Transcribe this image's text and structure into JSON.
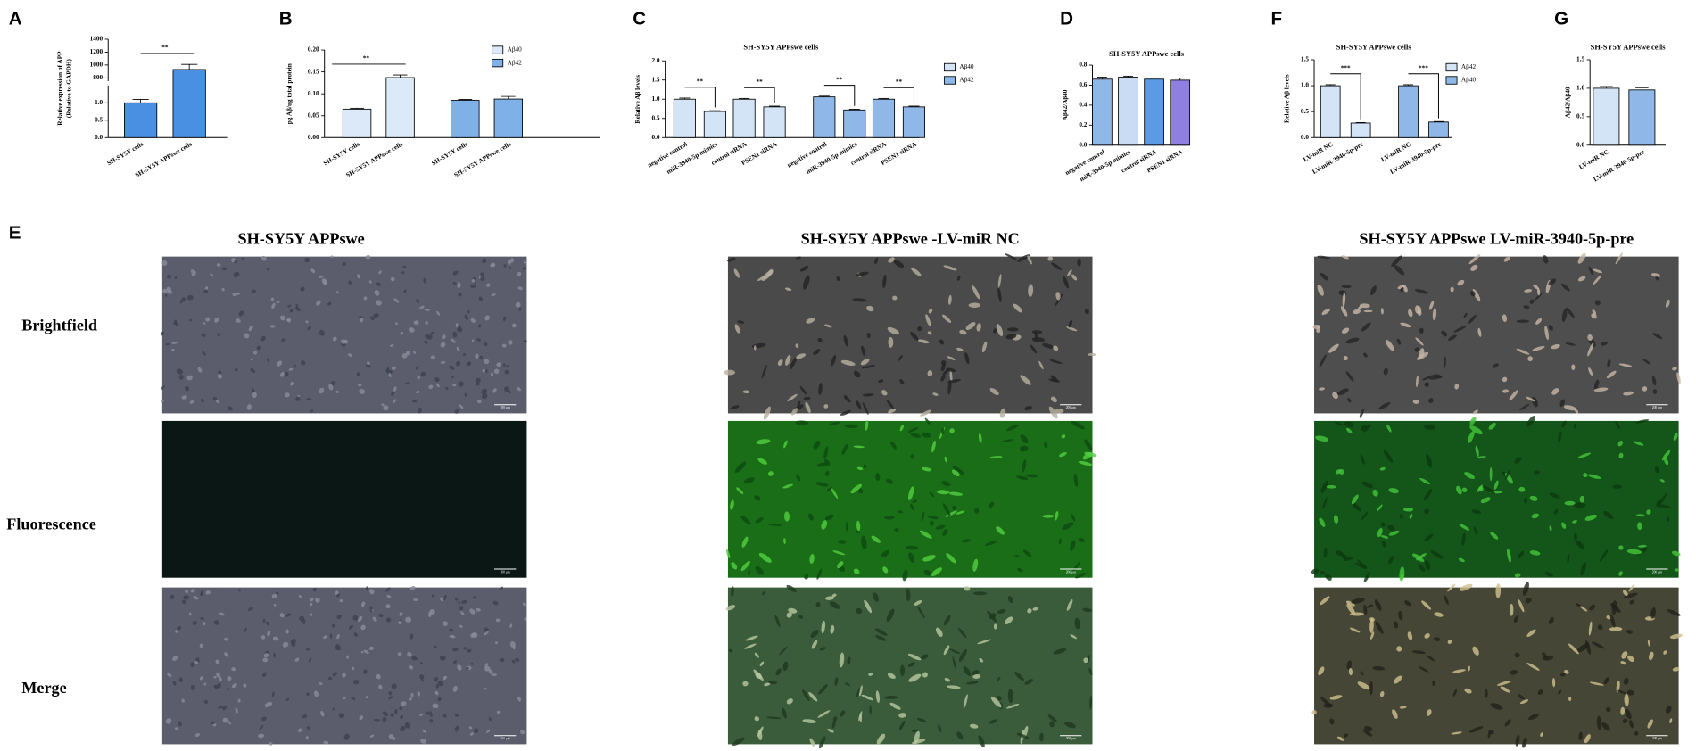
{
  "chart_data": [
    {
      "panel": "A",
      "type": "bar",
      "ylabel": [
        "Relative expression of APP",
        "(Relative to GAPDH)"
      ],
      "categories": [
        "SH-SY5Y cells",
        "SH-SY5Y APPswe cells"
      ],
      "values": [
        1.0,
        930
      ],
      "errors": [
        0.1,
        80
      ],
      "color": "#4a90e2",
      "ylim": [
        0,
        1400
      ],
      "ybreak": [
        1.5,
        750
      ],
      "yticks": [
        {
          "value": 0,
          "label": "0.0"
        },
        {
          "value": 0.5,
          "label": "0.5"
        },
        {
          "value": 1,
          "label": "1.0"
        },
        800,
        1000,
        1200,
        1400
      ],
      "significance": [
        {
          "label": "**",
          "between": [
            0,
            1
          ]
        }
      ]
    },
    {
      "panel": "B",
      "type": "bar",
      "ylabel": [
        "pg Aβ/ug total protein"
      ],
      "categories": [
        "SH-SY5Y cells",
        "SH-SY5Y APPswe cells",
        "SH-SY5Y cells",
        "SH-SY5Y APPswe cells"
      ],
      "series": [
        {
          "name": "Aβ40",
          "color": "#dce9f8",
          "values": [
            0.065,
            0.137,
            null,
            null
          ],
          "errors": [
            0.002,
            0.006,
            null,
            null
          ]
        },
        {
          "name": "Aβ42",
          "color": "#7fb0e8",
          "values": [
            null,
            null,
            0.085,
            0.088
          ],
          "errors": [
            null,
            null,
            0.002,
            0.006
          ]
        }
      ],
      "ylim": [
        0,
        0.2
      ],
      "yticks": [
        {
          "value": 0,
          "label": "0.00"
        },
        {
          "value": 0.05,
          "label": "0.05"
        },
        {
          "value": 0.1,
          "label": "0.10"
        },
        {
          "value": 0.15,
          "label": "0.15"
        },
        {
          "value": 0.2,
          "label": "0.20"
        }
      ],
      "significance": [
        {
          "label": "**",
          "between": [
            0,
            1
          ]
        }
      ]
    },
    {
      "panel": "C",
      "type": "bar",
      "title": "SH-SY5Y APPswe cells",
      "ylabel": [
        "Relative Aβ levels"
      ],
      "categories": [
        "negative control",
        "miR-3940-5p mimics",
        "control siRNA",
        "PSEN1 siRNA",
        "negative control",
        "miR-3940-5p mimics",
        "control siRNA",
        "PSEN1 siRNA"
      ],
      "series": [
        {
          "name": "Aβ40",
          "color": "#d3e4f7",
          "values": [
            1.0,
            0.68,
            1.0,
            0.8,
            null,
            null,
            null,
            null
          ],
          "errors": [
            0.03,
            0.02,
            0.02,
            0.02,
            null,
            null,
            null,
            null
          ]
        },
        {
          "name": "Aβ42",
          "color": "#8fb8e8",
          "values": [
            null,
            null,
            null,
            null,
            1.06,
            0.72,
            1.0,
            0.8
          ],
          "errors": [
            null,
            null,
            null,
            null,
            0.02,
            0.02,
            0.02,
            0.02
          ]
        }
      ],
      "ylim": [
        0,
        2
      ],
      "yticks": [
        {
          "value": 0,
          "label": "0.0"
        },
        {
          "value": 0.5,
          "label": "0.5"
        },
        {
          "value": 1,
          "label": "1.0"
        },
        {
          "value": 1.5,
          "label": "1.5"
        },
        {
          "value": 2,
          "label": "2.0"
        }
      ],
      "significance": [
        {
          "label": "**",
          "between": [
            0,
            1
          ]
        },
        {
          "label": "**",
          "between": [
            2,
            3
          ]
        },
        {
          "label": "**",
          "between": [
            4,
            5
          ]
        },
        {
          "label": "**",
          "between": [
            6,
            7
          ]
        }
      ]
    },
    {
      "panel": "D",
      "type": "bar",
      "title": "SH-SY5Y APPswe cells",
      "ylabel": [
        "Aβ42/Aβ40"
      ],
      "categories": [
        "negative control",
        "miR-3940-5p mimics",
        "control siRNA",
        "PSEN1 siRNA"
      ],
      "values": [
        0.66,
        0.68,
        0.66,
        0.65
      ],
      "errors": [
        0.02,
        0.01,
        0.01,
        0.02
      ],
      "colors": [
        "#8fb8e8",
        "#c9dcf4",
        "#5b9be6",
        "#8e7fe0"
      ],
      "ylim": [
        0,
        0.8
      ],
      "yticks": [
        {
          "value": 0,
          "label": "0.0"
        },
        {
          "value": 0.2,
          "label": "0.2"
        },
        {
          "value": 0.4,
          "label": "0.4"
        },
        {
          "value": 0.6,
          "label": "0.6"
        },
        {
          "value": 0.8,
          "label": "0.8"
        }
      ]
    },
    {
      "panel": "F",
      "type": "bar",
      "title": "SH-SY5Y APPswe cells",
      "ylabel": [
        "Relative Aβ levels"
      ],
      "categories": [
        "LV-miR NC",
        "LV-miR-3940-5p-pre",
        "LV-miR NC",
        "LV-miR-3940-5p-pre"
      ],
      "series": [
        {
          "name": "Aβ42",
          "color": "#d3e4f7",
          "values": [
            1.0,
            0.28,
            null,
            null
          ],
          "errors": [
            0.02,
            0.01,
            null,
            null
          ]
        },
        {
          "name": "Aβ40",
          "color": "#8fb8e8",
          "values": [
            null,
            null,
            1.0,
            0.3
          ],
          "errors": [
            null,
            null,
            0.02,
            0.01
          ]
        }
      ],
      "ylim": [
        0,
        1.5
      ],
      "yticks": [
        {
          "value": 0,
          "label": "0.0"
        },
        {
          "value": 0.5,
          "label": "0.5"
        },
        {
          "value": 1,
          "label": "1.0"
        },
        {
          "value": 1.5,
          "label": "1.5"
        }
      ],
      "significance": [
        {
          "label": "***",
          "between": [
            0,
            1
          ]
        },
        {
          "label": "***",
          "between": [
            2,
            3
          ]
        }
      ]
    },
    {
      "panel": "G",
      "type": "bar",
      "title": "SH-SY5Y APPswe cells",
      "ylabel": [
        "Aβ42/Aβ40"
      ],
      "categories": [
        "LV-miR NC",
        "LV-miR-3940-5p-pre"
      ],
      "values": [
        1.0,
        0.97
      ],
      "errors": [
        0.03,
        0.04
      ],
      "colors": [
        "#d3e4f7",
        "#8fb8e8"
      ],
      "ylim": [
        0,
        1.5
      ],
      "yticks": [
        {
          "value": 0,
          "label": "0.0"
        },
        {
          "value": 0.5,
          "label": "0.5"
        },
        {
          "value": 1,
          "label": "1.0"
        },
        {
          "value": 1.5,
          "label": "1.5"
        }
      ]
    }
  ],
  "figure_e": {
    "panel": "E",
    "columns": [
      "SH-SY5Y APPswe",
      "SH-SY5Y APPswe -LV-miR NC",
      "SH-SY5Y APPswe LV-miR-3940-5p-pre"
    ],
    "rows": [
      "Brightfield",
      "Fluorescence",
      "Merge"
    ],
    "scale_bar": "200 μm"
  }
}
